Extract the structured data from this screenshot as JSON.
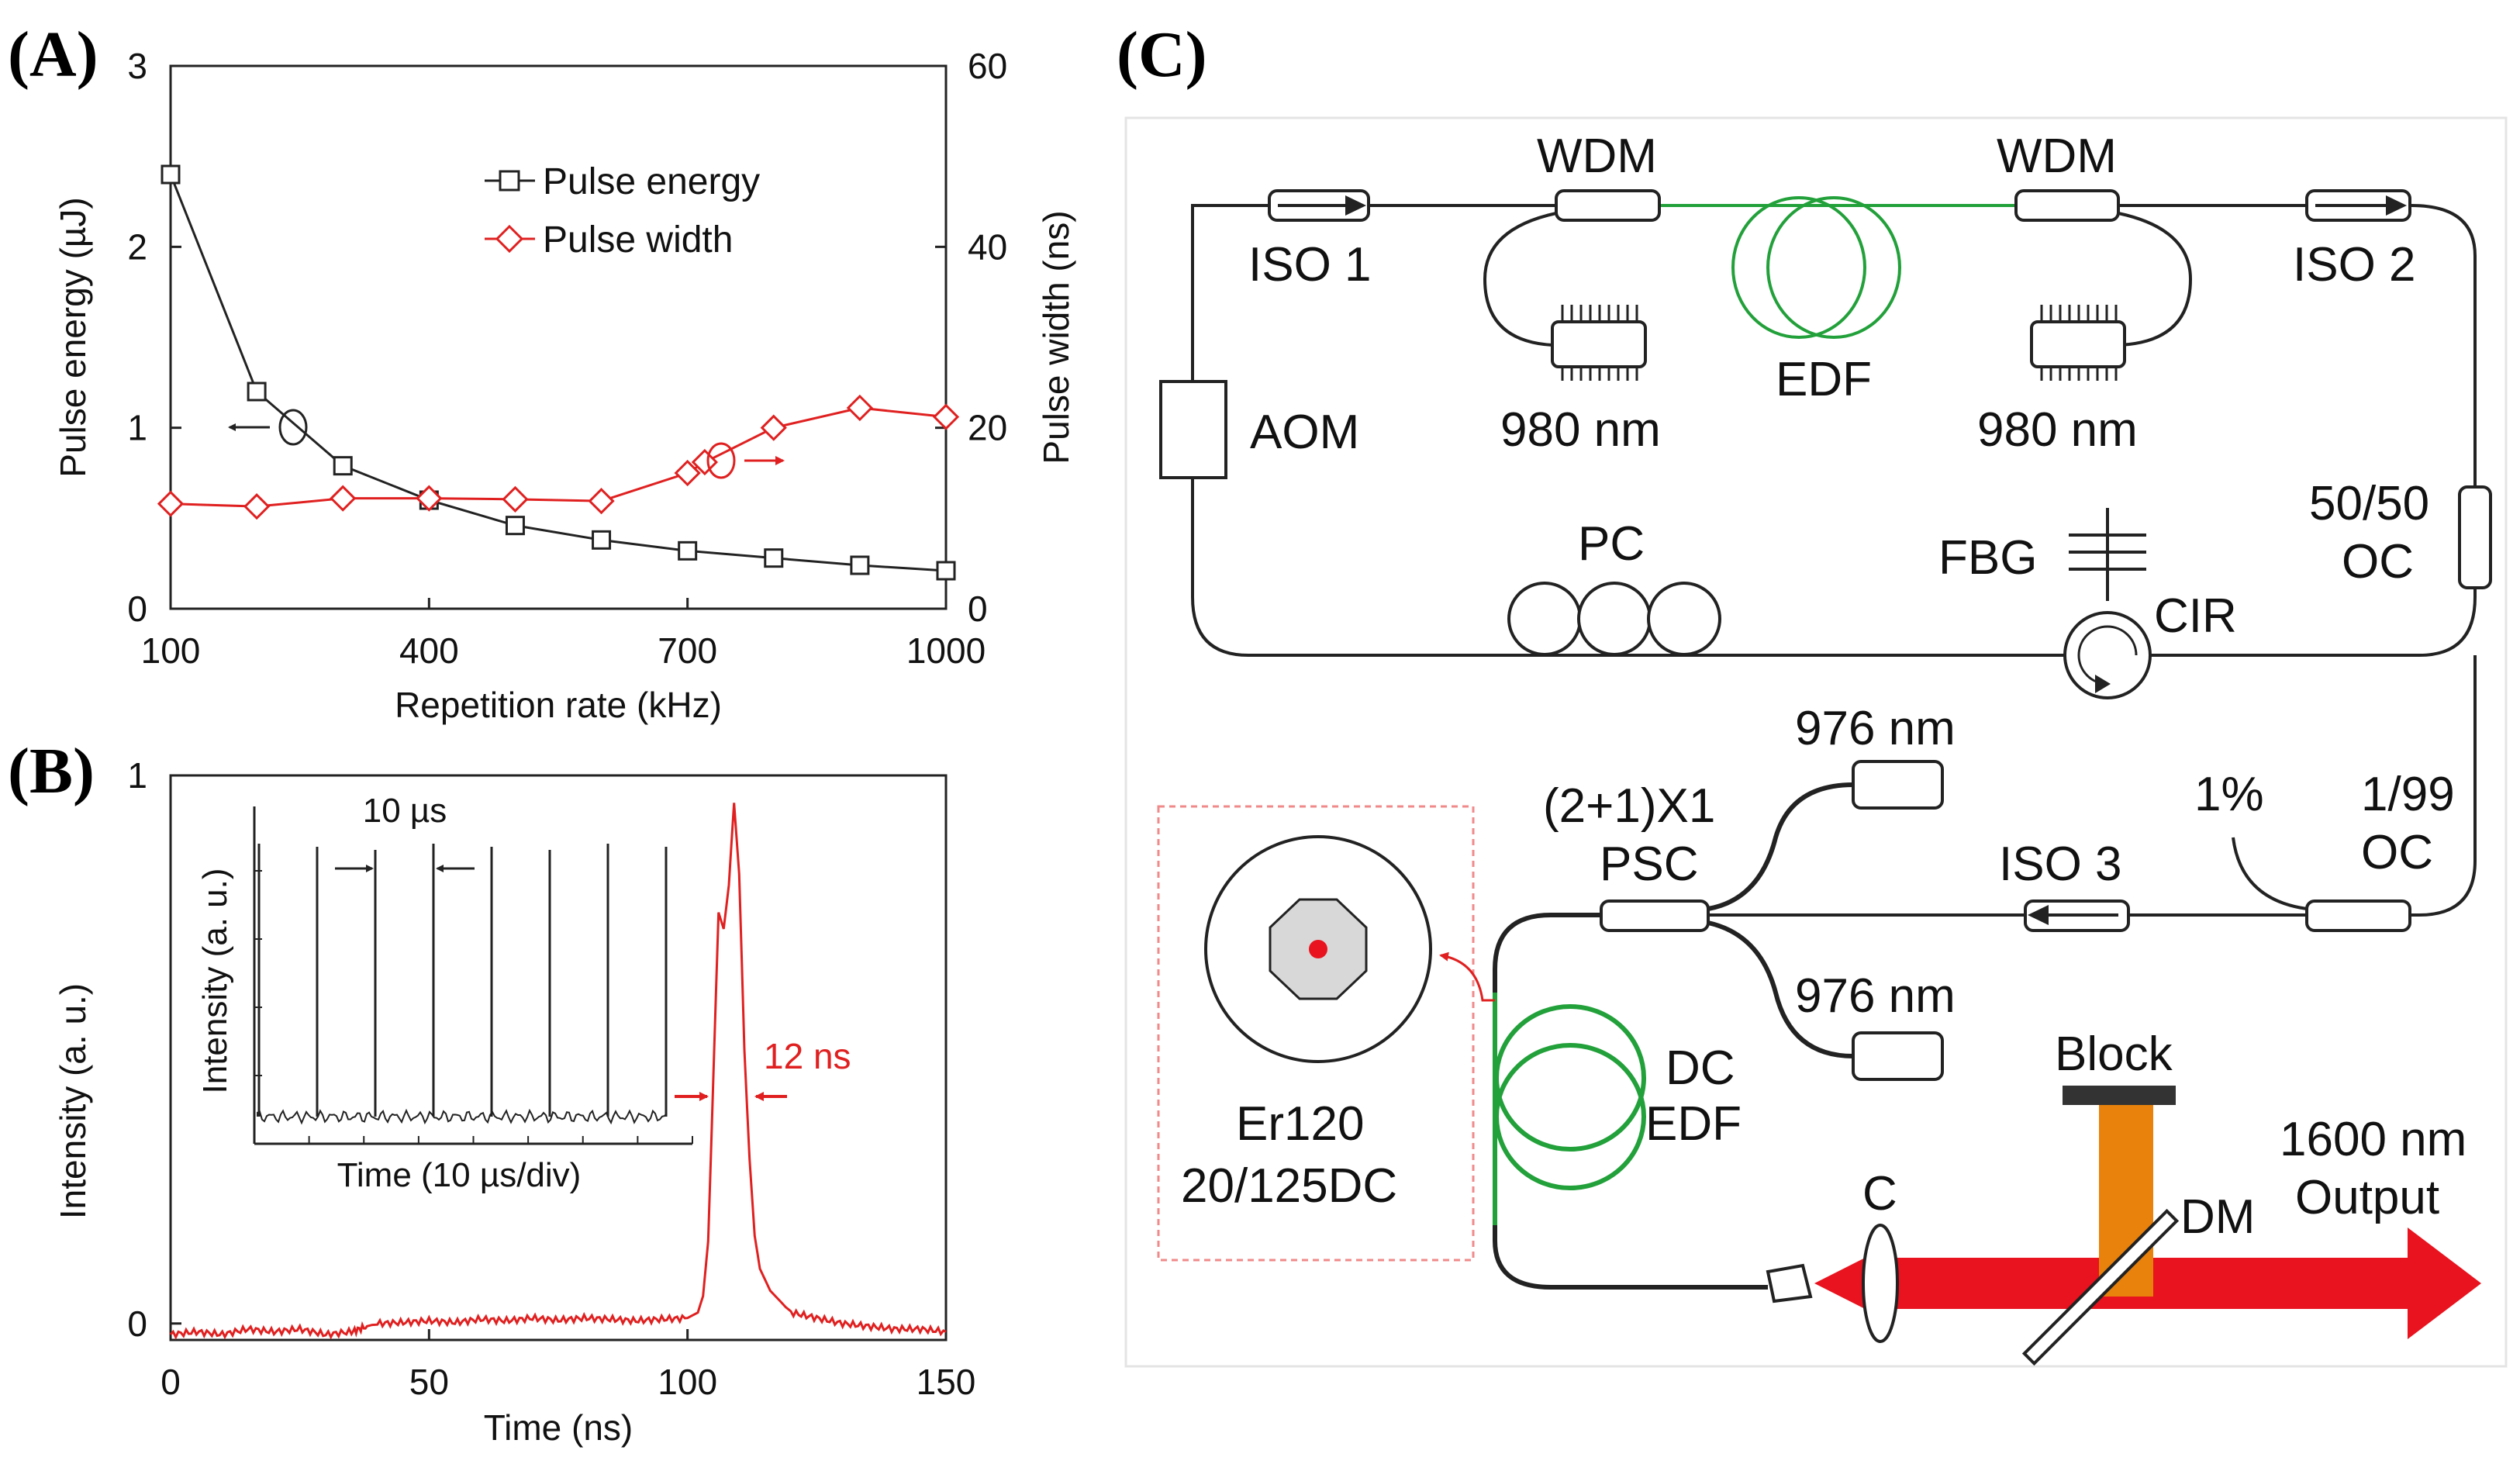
{
  "panels": {
    "a": "(A)",
    "b": "(B)",
    "c": "(C)"
  },
  "chart_data": [
    {
      "type": "line",
      "title": "",
      "xlabel": "Repetition rate (kHz)",
      "ylabel": "Pulse energy (µJ)",
      "ylabel_right": "Pulse width (ns)",
      "xlim": [
        100,
        1000
      ],
      "ylim": [
        0,
        3
      ],
      "ylim_right": [
        0,
        60
      ],
      "x_ticks": [
        "100",
        "400",
        "700",
        "1000"
      ],
      "x_tick_values": [
        100,
        400,
        700,
        1000
      ],
      "y_ticks": [
        "0",
        "1",
        "2",
        "3"
      ],
      "y_tick_values": [
        0,
        1,
        2,
        3
      ],
      "y_ticks_right": [
        "0",
        "20",
        "40",
        "60"
      ],
      "y_tick_values_right": [
        0,
        20,
        40,
        60
      ],
      "legend_position": "top-right",
      "series": [
        {
          "name": "Pulse energy",
          "axis": "left",
          "marker": "square",
          "color": "#222222",
          "x": [
            100,
            200,
            300,
            400,
            500,
            600,
            700,
            800,
            900,
            1000
          ],
          "y": [
            2.4,
            1.2,
            0.79,
            0.6,
            0.46,
            0.38,
            0.32,
            0.28,
            0.24,
            0.21
          ]
        },
        {
          "name": "Pulse width",
          "axis": "right",
          "marker": "diamond",
          "color": "#e02020",
          "x": [
            100,
            200,
            300,
            400,
            500,
            600,
            700,
            720,
            800,
            900,
            1000
          ],
          "y": [
            11.6,
            11.3,
            12.2,
            12.2,
            12.1,
            11.9,
            15,
            16.2,
            20,
            22.2,
            21.2
          ]
        }
      ]
    },
    {
      "type": "line",
      "title": "",
      "xlabel": "Time (ns)",
      "ylabel": "Intensity (a. u.)",
      "xlim": [
        0,
        150
      ],
      "ylim": [
        -0.03,
        1
      ],
      "x_ticks": [
        "0",
        "50",
        "100",
        "150"
      ],
      "x_tick_values": [
        0,
        50,
        100,
        150
      ],
      "y_ticks": [
        "0",
        "1"
      ],
      "y_tick_values": [
        0,
        1
      ],
      "annotation": "12 ns",
      "series": [
        {
          "name": "Pulse",
          "color": "#e02020",
          "x": [
            0,
            5,
            10,
            15,
            20,
            25,
            30,
            35,
            38,
            40,
            45,
            50,
            55,
            60,
            65,
            70,
            75,
            80,
            85,
            90,
            95,
            100,
            102,
            103,
            104,
            105,
            106,
            107,
            108,
            109,
            110,
            111,
            112,
            113,
            114,
            116,
            118,
            120,
            125,
            130,
            135,
            140,
            145,
            150
          ],
          "y": [
            -0.02,
            -0.015,
            -0.02,
            -0.01,
            -0.015,
            -0.01,
            -0.02,
            -0.015,
            -0.005,
            0.0,
            0.002,
            0.005,
            0.002,
            0.008,
            0.005,
            0.01,
            0.006,
            0.01,
            0.008,
            0.005,
            0.008,
            0.01,
            0.02,
            0.05,
            0.15,
            0.45,
            0.75,
            0.72,
            0.8,
            0.95,
            0.82,
            0.5,
            0.3,
            0.16,
            0.1,
            0.06,
            0.04,
            0.02,
            0.01,
            0.0,
            -0.005,
            -0.01,
            -0.01,
            -0.015
          ]
        }
      ],
      "inset": {
        "type": "line",
        "xlabel": "Time (10 µs/div)",
        "ylabel": "Intensity (a. u.)",
        "annotation": "10 µs",
        "spacing_us": 10,
        "pulse_times_us": [
          0,
          10,
          20,
          30,
          40,
          50,
          60,
          70
        ],
        "pulse_height": 0.88
      }
    }
  ],
  "diagram": {
    "labels": {
      "iso1": "ISO 1",
      "iso2": "ISO 2",
      "iso3": "ISO 3",
      "wdm1": "WDM",
      "wdm2": "WDM",
      "pump1": "980 nm",
      "pump2": "980 nm",
      "edf": "EDF",
      "aom": "AOM",
      "pc": "PC",
      "fbg": "FBG",
      "cir": "CIR",
      "oc1_ratio": "50/50",
      "oc1": "OC",
      "oc2_ratio": "1/99",
      "oc2": "OC",
      "tap": "1%",
      "psc_top": "(2+1)X1",
      "psc": "PSC",
      "pump3": "976 nm",
      "pump4": "976 nm",
      "dc1": "DC",
      "dc2": "EDF",
      "fiber1": "Er120",
      "fiber2": "20/125DC",
      "collimator": "C",
      "block": "Block",
      "dm": "DM",
      "out1": "1600 nm",
      "out2": "Output"
    },
    "colors": {
      "fiber": "#222222",
      "gain_fiber": "#22a03a",
      "beam": "#e8131e",
      "pump_beam": "#e8820c",
      "dashed_box": "#f08a8a"
    }
  }
}
